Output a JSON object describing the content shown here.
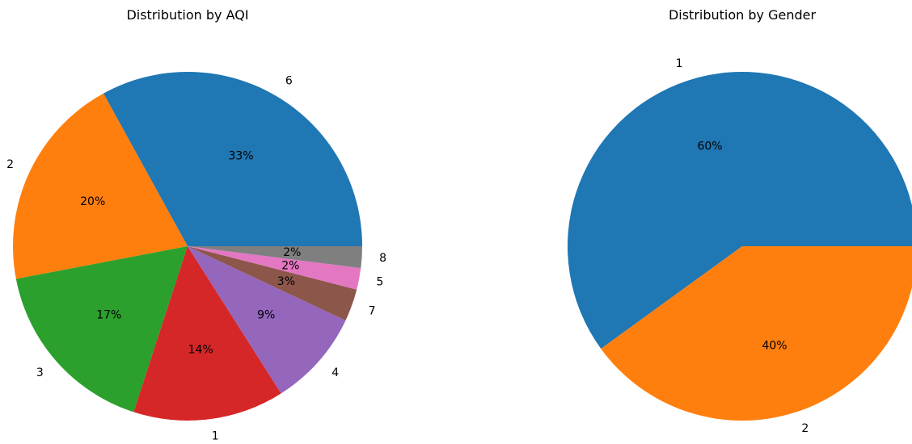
{
  "chart_data": [
    {
      "type": "pie",
      "title": "Distribution by AQI",
      "start_angle_deg": 0,
      "direction": "counterclockwise",
      "slices": [
        {
          "label": "6",
          "value": 33,
          "pct_label": "33%",
          "color": "#1f77b4"
        },
        {
          "label": "2",
          "value": 20,
          "pct_label": "20%",
          "color": "#ff7f0e"
        },
        {
          "label": "3",
          "value": 17,
          "pct_label": "17%",
          "color": "#2ca02c"
        },
        {
          "label": "1",
          "value": 14,
          "pct_label": "14%",
          "color": "#d62728"
        },
        {
          "label": "4",
          "value": 9,
          "pct_label": "9%",
          "color": "#9467bd"
        },
        {
          "label": "7",
          "value": 3,
          "pct_label": "3%",
          "color": "#8c564b"
        },
        {
          "label": "5",
          "value": 2,
          "pct_label": "2%",
          "color": "#e377c2"
        },
        {
          "label": "8",
          "value": 2,
          "pct_label": "2%",
          "color": "#7f7f7f"
        }
      ]
    },
    {
      "type": "pie",
      "title": "Distribution by Gender",
      "start_angle_deg": 0,
      "direction": "counterclockwise",
      "slices": [
        {
          "label": "1",
          "value": 60,
          "pct_label": "60%",
          "color": "#1f77b4"
        },
        {
          "label": "2",
          "value": 40,
          "pct_label": "40%",
          "color": "#ff7f0e"
        }
      ]
    }
  ]
}
